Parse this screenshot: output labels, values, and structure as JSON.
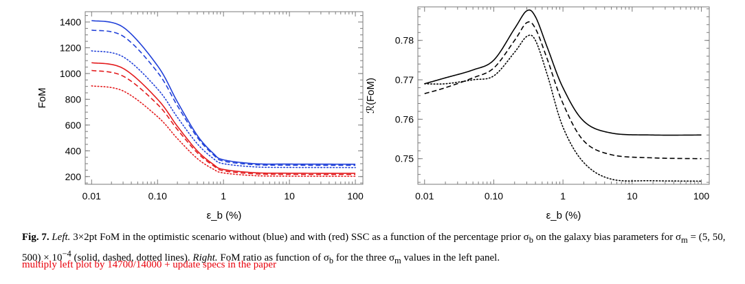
{
  "figure": {
    "caption": {
      "label": "Fig. 7.",
      "left_heading": "Left.",
      "left_text": "3×2pt FoM in the optimistic scenario without (blue) and with (red) SSC as a function of the percentage prior σ",
      "left_sub_b": "b",
      "left_text_2": " on the galaxy bias parameters for σ",
      "left_sub_m": "m",
      "left_text_3": " = (5, 50, 500) × 10",
      "left_exp": "−4",
      "left_text_4": " (solid, dashed, dotted lines). ",
      "right_heading": "Right.",
      "right_text": " FoM ratio as function of σ",
      "right_sub_b": "b",
      "right_text_2": " for the three σ",
      "right_sub_m": "m",
      "right_text_3": " values in the left panel."
    },
    "note": "multiply left plot by 14700/14000 + update specs in the paper"
  },
  "chart_data": [
    {
      "type": "line",
      "panel": "left",
      "xscale": "log",
      "xlabel": "ε_b (%)",
      "ylabel": "FoM",
      "xlim": [
        0.008,
        130
      ],
      "ylim": [
        140,
        1480
      ],
      "xticks": [
        "0.01",
        "0.10",
        "1",
        "10",
        "100"
      ],
      "yticks": [
        "200",
        "400",
        "600",
        "800",
        "1000",
        "1200",
        "1400"
      ],
      "colors": {
        "no_ssc": "#1f3fd8",
        "ssc": "#e31a1c"
      },
      "series": [
        {
          "group": "without SSC",
          "style": "solid",
          "color": "no_ssc",
          "points": [
            [
              0.01,
              1411
            ],
            [
              0.03,
              1360
            ],
            [
              0.1,
              1060
            ],
            [
              0.2,
              780
            ],
            [
              0.4,
              520
            ],
            [
              0.7,
              380
            ],
            [
              1,
              330
            ],
            [
              3,
              300
            ],
            [
              10,
              297
            ],
            [
              100,
              296
            ]
          ]
        },
        {
          "group": "without SSC",
          "style": "dashed",
          "color": "no_ssc",
          "points": [
            [
              0.01,
              1337
            ],
            [
              0.03,
              1290
            ],
            [
              0.1,
              1010
            ],
            [
              0.2,
              750
            ],
            [
              0.4,
              505
            ],
            [
              0.7,
              370
            ],
            [
              1,
              320
            ],
            [
              3,
              292
            ],
            [
              10,
              288
            ],
            [
              100,
              287
            ]
          ]
        },
        {
          "group": "without SSC",
          "style": "dotted",
          "color": "no_ssc",
          "points": [
            [
              0.01,
              1176
            ],
            [
              0.03,
              1130
            ],
            [
              0.1,
              880
            ],
            [
              0.2,
              660
            ],
            [
              0.4,
              455
            ],
            [
              0.7,
              340
            ],
            [
              1,
              300
            ],
            [
              3,
              275
            ],
            [
              10,
              271
            ],
            [
              100,
              270
            ]
          ]
        },
        {
          "group": "with SSC",
          "style": "solid",
          "color": "ssc",
          "points": [
            [
              0.01,
              1084
            ],
            [
              0.03,
              1040
            ],
            [
              0.1,
              800
            ],
            [
              0.2,
              590
            ],
            [
              0.4,
              400
            ],
            [
              0.7,
              295
            ],
            [
              1,
              255
            ],
            [
              3,
              230
            ],
            [
              10,
              226
            ],
            [
              100,
              225
            ]
          ]
        },
        {
          "group": "with SSC",
          "style": "dashed",
          "color": "ssc",
          "points": [
            [
              0.01,
              1024
            ],
            [
              0.03,
              980
            ],
            [
              0.1,
              760
            ],
            [
              0.2,
              565
            ],
            [
              0.4,
              385
            ],
            [
              0.7,
              285
            ],
            [
              1,
              245
            ],
            [
              3,
              221
            ],
            [
              10,
              217
            ],
            [
              100,
              216
            ]
          ]
        },
        {
          "group": "with SSC",
          "style": "dotted",
          "color": "ssc",
          "points": [
            [
              0.01,
              904
            ],
            [
              0.03,
              865
            ],
            [
              0.1,
              665
            ],
            [
              0.2,
              495
            ],
            [
              0.4,
              340
            ],
            [
              0.7,
              258
            ],
            [
              1,
              228
            ],
            [
              3,
              207
            ],
            [
              10,
              203
            ],
            [
              100,
              202
            ]
          ]
        }
      ]
    },
    {
      "type": "line",
      "panel": "right",
      "xscale": "log",
      "xlabel": "ε_b (%)",
      "ylabel": "ℛ(FoM)",
      "xlim": [
        0.008,
        130
      ],
      "ylim": [
        0.7435,
        0.7885
      ],
      "xticks": [
        "0.01",
        "0.10",
        "1",
        "10",
        "100"
      ],
      "yticks": [
        "0.75",
        "0.76",
        "0.77",
        "0.78"
      ],
      "colors": {
        "ratio": "#000000"
      },
      "series": [
        {
          "style": "solid",
          "color": "ratio",
          "points": [
            [
              0.01,
              0.769
            ],
            [
              0.02,
              0.7705
            ],
            [
              0.05,
              0.7725
            ],
            [
              0.1,
              0.775
            ],
            [
              0.2,
              0.783
            ],
            [
              0.3,
              0.7875
            ],
            [
              0.4,
              0.786
            ],
            [
              0.6,
              0.778
            ],
            [
              1,
              0.768
            ],
            [
              2,
              0.7595
            ],
            [
              5,
              0.7565
            ],
            [
              20,
              0.756
            ],
            [
              100,
              0.756
            ]
          ]
        },
        {
          "style": "dashed",
          "color": "ratio",
          "points": [
            [
              0.01,
              0.7665
            ],
            [
              0.02,
              0.768
            ],
            [
              0.05,
              0.7705
            ],
            [
              0.1,
              0.773
            ],
            [
              0.2,
              0.78
            ],
            [
              0.3,
              0.7845
            ],
            [
              0.4,
              0.783
            ],
            [
              0.6,
              0.775
            ],
            [
              1,
              0.764
            ],
            [
              2,
              0.7545
            ],
            [
              5,
              0.751
            ],
            [
              20,
              0.7502
            ],
            [
              100,
              0.75
            ]
          ]
        },
        {
          "style": "dotted",
          "color": "ratio",
          "points": [
            [
              0.01,
              0.769
            ],
            [
              0.02,
              0.769
            ],
            [
              0.05,
              0.77
            ],
            [
              0.1,
              0.771
            ],
            [
              0.2,
              0.777
            ],
            [
              0.3,
              0.781
            ],
            [
              0.4,
              0.78
            ],
            [
              0.6,
              0.771
            ],
            [
              1,
              0.758
            ],
            [
              2,
              0.749
            ],
            [
              5,
              0.7448
            ],
            [
              20,
              0.7444
            ],
            [
              100,
              0.7443
            ]
          ]
        }
      ]
    }
  ]
}
